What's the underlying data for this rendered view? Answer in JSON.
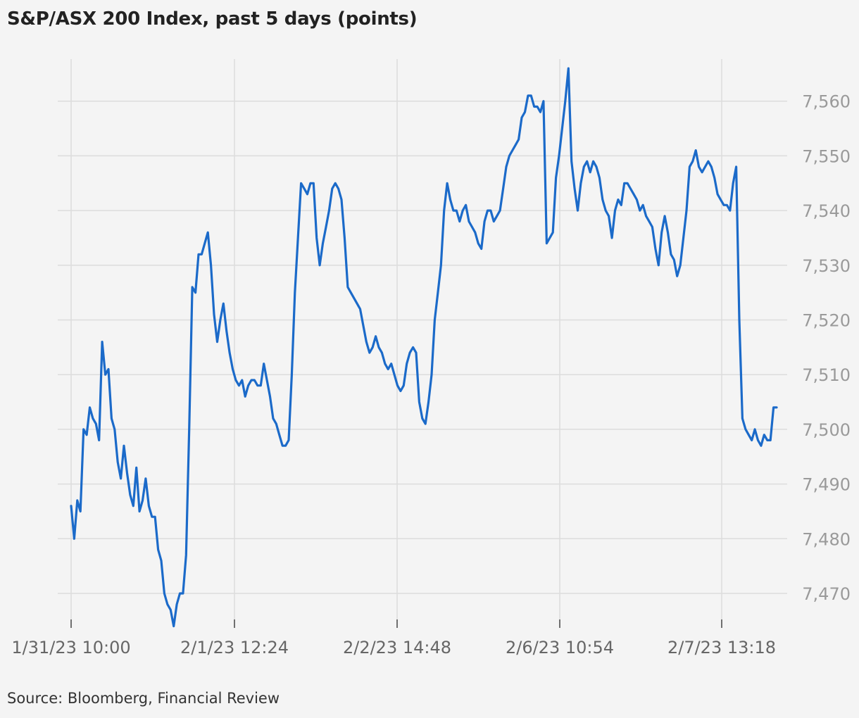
{
  "title": "S&P/ASX 200 Index, past 5 days (points)",
  "source": "Source: Bloomberg, Financial Review",
  "chart_data": {
    "type": "line",
    "title": "S&P/ASX 200 Index, past 5 days (points)",
    "xlabel": "",
    "ylabel": "",
    "ylim": [
      7464,
      7568
    ],
    "grid": true,
    "line_color": "#1b6ac9",
    "y_ticks": [
      "7,470",
      "7,480",
      "7,490",
      "7,500",
      "7,510",
      "7,520",
      "7,530",
      "7,540",
      "7,550",
      "7,560"
    ],
    "x_ticks": [
      "1/31/23 10:00",
      "2/1/23 12:24",
      "2/2/23 14:48",
      "2/6/23 10:54",
      "2/7/23 13:18"
    ],
    "series": [
      {
        "values": [
          7486,
          7480,
          7487,
          7485,
          7500,
          7499,
          7504,
          7502,
          7501,
          7498,
          7516,
          7510,
          7511,
          7502,
          7500,
          7494,
          7491,
          7497,
          7492,
          7488,
          7486,
          7493,
          7485,
          7487,
          7491,
          7486,
          7484,
          7484,
          7478,
          7476,
          7470,
          7468,
          7467,
          7464,
          7468,
          7470,
          7470,
          7477,
          7500,
          7526,
          7525,
          7532,
          7532,
          7534,
          7536,
          7530,
          7521,
          7516,
          7520,
          7523,
          7518,
          7514,
          7511,
          7509,
          7508,
          7509,
          7506,
          7508,
          7509,
          7509,
          7508,
          7508,
          7512,
          7509,
          7506,
          7502,
          7501,
          7499,
          7497,
          7497,
          7498,
          7510,
          7525,
          7535,
          7545,
          7544,
          7543,
          7545,
          7545,
          7535,
          7530,
          7534,
          7537,
          7540,
          7544,
          7545,
          7544,
          7542,
          7535,
          7526,
          7525,
          7524,
          7523,
          7522,
          7519,
          7516,
          7514,
          7515,
          7517,
          7515,
          7514,
          7512,
          7511,
          7512,
          7510,
          7508,
          7507,
          7508,
          7512,
          7514,
          7515,
          7514,
          7505,
          7502,
          7501,
          7505,
          7510,
          7520,
          7525,
          7530,
          7540,
          7545,
          7542,
          7540,
          7540,
          7538,
          7540,
          7541,
          7538,
          7537,
          7536,
          7534,
          7533,
          7538,
          7540,
          7540,
          7538,
          7539,
          7540,
          7544,
          7548,
          7550,
          7551,
          7552,
          7553,
          7557,
          7558,
          7561,
          7561,
          7559,
          7559,
          7558,
          7560,
          7534,
          7535,
          7536,
          7546,
          7550,
          7555,
          7560,
          7566,
          7549,
          7544,
          7540,
          7545,
          7548,
          7549,
          7547,
          7549,
          7548,
          7546,
          7542,
          7540,
          7539,
          7535,
          7540,
          7542,
          7541,
          7545,
          7545,
          7544,
          7543,
          7542,
          7540,
          7541,
          7539,
          7538,
          7537,
          7533,
          7530,
          7536,
          7539,
          7536,
          7532,
          7531,
          7528,
          7530,
          7535,
          7540,
          7548,
          7549,
          7551,
          7548,
          7547,
          7548,
          7549,
          7548,
          7546,
          7543,
          7542,
          7541,
          7541,
          7540,
          7545,
          7548,
          7520,
          7502,
          7500,
          7499,
          7498,
          7500,
          7498,
          7497,
          7499,
          7498,
          7498,
          7504,
          7504
        ]
      }
    ]
  }
}
